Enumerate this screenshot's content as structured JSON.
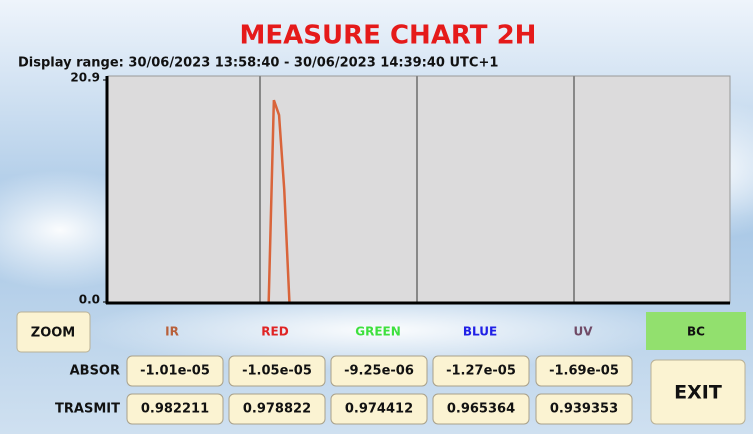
{
  "chart_data": {
    "type": "line",
    "title": "MEASURE CHART 2H",
    "subtitle": "Display range: 30/06/2023 13:58:40 - 30/06/2023 14:39:40 UTC+1",
    "ylim": [
      0,
      20.9
    ],
    "yticks": [
      {
        "value": 0,
        "label": "0.0"
      },
      20.9
    ],
    "series": [
      {
        "color": "#d9643a",
        "values": [
          null,
          null,
          null,
          null,
          null,
          null,
          null,
          null,
          null,
          null,
          null,
          null,
          null,
          null,
          null,
          null,
          null,
          null,
          null,
          null,
          null,
          null,
          null,
          null,
          null,
          null,
          null,
          null,
          null,
          null,
          null,
          0,
          19.0,
          17.6,
          10.6,
          0,
          null,
          null,
          null,
          null,
          null,
          null,
          null,
          null,
          null,
          null,
          null,
          null,
          null,
          null,
          null,
          null,
          null,
          null,
          null,
          null,
          null,
          null,
          null,
          null,
          null,
          null,
          null,
          null,
          null,
          null,
          null,
          null,
          null,
          null,
          null,
          null,
          null,
          null,
          null,
          null,
          null,
          null,
          null,
          null,
          null,
          null,
          null,
          null,
          null,
          null,
          null,
          null,
          null,
          null,
          null,
          null,
          null,
          null,
          null,
          null,
          null,
          null,
          null,
          null,
          null,
          null,
          null,
          null,
          null,
          null,
          null,
          null,
          null,
          null,
          null,
          null,
          null,
          null,
          null,
          null,
          null,
          null,
          null,
          null,
          null
        ]
      }
    ]
  },
  "buttons": {
    "zoom": "ZOOM",
    "exit": "EXIT"
  },
  "channels": [
    {
      "name": "IR",
      "color": "#b8603a"
    },
    {
      "name": "RED",
      "color": "#e02424"
    },
    {
      "name": "GREEN",
      "color": "#3ee03e"
    },
    {
      "name": "BLUE",
      "color": "#2020e6"
    },
    {
      "name": "UV",
      "color": "#704a66"
    },
    {
      "name": "BC",
      "color": "#111111"
    }
  ],
  "rows": [
    {
      "label": "ABSOR",
      "values": [
        "-1.01e-05",
        "-1.05e-05",
        "-9.25e-06",
        "-1.27e-05",
        "-1.69e-05"
      ]
    },
    {
      "label": "TRASMIT",
      "values": [
        "0.982211",
        "0.978822",
        "0.974412",
        "0.965364",
        "0.939353"
      ]
    }
  ]
}
